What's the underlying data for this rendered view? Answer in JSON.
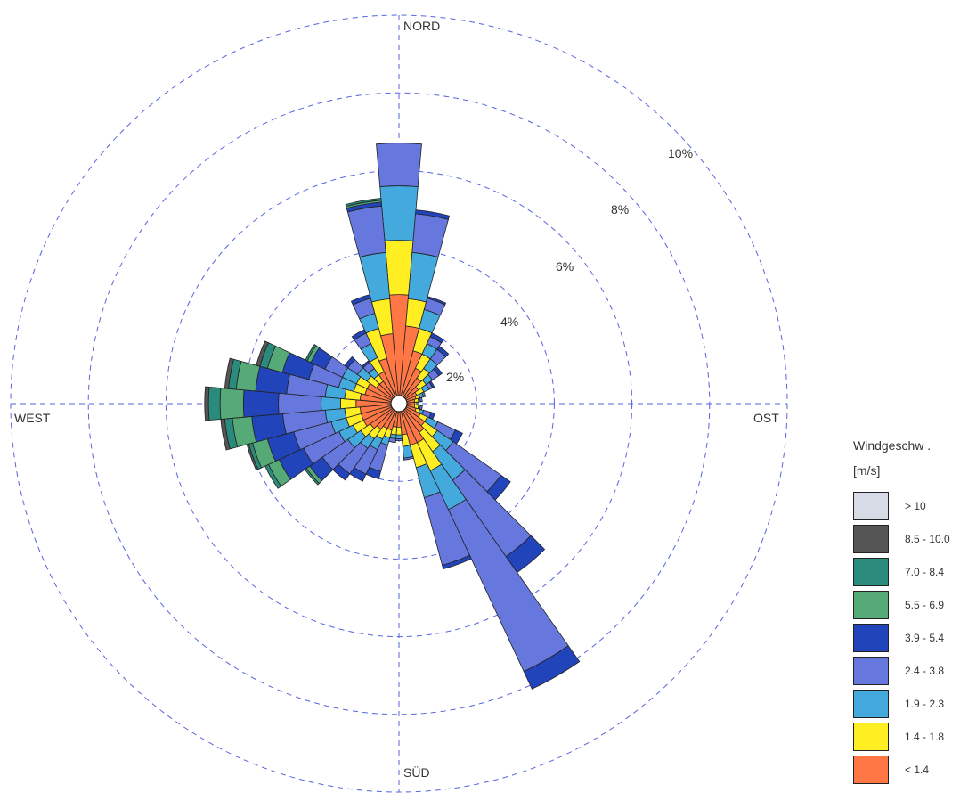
{
  "chart_data": {
    "type": "windrose",
    "cardinals": {
      "north": "NORD",
      "east": "OST",
      "south": "SÜD",
      "west": "WEST"
    },
    "ring_labels": [
      "2%",
      "4%",
      "6%",
      "8%",
      "10%"
    ],
    "ring_values": [
      2,
      4,
      6,
      8,
      10
    ],
    "radial_max": 10,
    "legend_title": "Windgeschw .",
    "legend_unit": "[m/s]",
    "speed_classes": [
      {
        "label": "> 10",
        "color": "#d7dbe6"
      },
      {
        "label": "8.5 - 10.0",
        "color": "#555555"
      },
      {
        "label": "7.0 - 8.4",
        "color": "#2a8a7c"
      },
      {
        "label": "5.5 - 6.9",
        "color": "#55aa77"
      },
      {
        "label": "3.9 - 5.4",
        "color": "#2244bb"
      },
      {
        "label": "2.4 - 3.8",
        "color": "#6677dd"
      },
      {
        "label": "1.9 - 2.3",
        "color": "#44aadd"
      },
      {
        "label": "1.4 - 1.8",
        "color": "#ffee22"
      },
      {
        "label": "< 1.4",
        "color": "#ff7744"
      }
    ],
    "sector_width_deg": 10,
    "stack_order_note": "segments listed inner to outer: <1.4, 1.4-1.8, 1.9-2.3, 2.4-3.8, 3.9-5.4, 5.5-6.9, 7.0-8.4, 8.5-10.0",
    "sectors": [
      {
        "dir": 0,
        "segments": [
          2.6,
          1.4,
          1.4,
          1.1,
          0,
          0,
          0,
          0
        ]
      },
      {
        "dir": 10,
        "segments": [
          1.8,
          0.7,
          1.2,
          1.0,
          0.1,
          0,
          0,
          0
        ]
      },
      {
        "dir": 20,
        "segments": [
          1.2,
          0.6,
          0.5,
          0.3,
          0.05,
          0,
          0,
          0
        ]
      },
      {
        "dir": 30,
        "segments": [
          0.8,
          0.4,
          0.3,
          0.2,
          0.1,
          0,
          0,
          0
        ]
      },
      {
        "dir": 40,
        "segments": [
          0.6,
          0.3,
          0.3,
          0.3,
          0.1,
          0,
          0,
          0
        ]
      },
      {
        "dir": 50,
        "segments": [
          0.4,
          0.25,
          0.2,
          0.2,
          0.1,
          0,
          0,
          0
        ]
      },
      {
        "dir": 60,
        "segments": [
          0.3,
          0.2,
          0.15,
          0.1,
          0.05,
          0,
          0,
          0
        ]
      },
      {
        "dir": 70,
        "segments": [
          0.25,
          0.1,
          0.1,
          0.05,
          0,
          0,
          0,
          0
        ]
      },
      {
        "dir": 80,
        "segments": [
          0.2,
          0.1,
          0.05,
          0.05,
          0,
          0,
          0,
          0
        ]
      },
      {
        "dir": 90,
        "segments": [
          0.2,
          0.05,
          0.05,
          0,
          0,
          0,
          0,
          0
        ]
      },
      {
        "dir": 100,
        "segments": [
          0.2,
          0.1,
          0.05,
          0.05,
          0,
          0,
          0,
          0
        ]
      },
      {
        "dir": 110,
        "segments": [
          0.25,
          0.1,
          0.1,
          0.2,
          0.1,
          0,
          0,
          0
        ]
      },
      {
        "dir": 120,
        "segments": [
          0.4,
          0.2,
          0.3,
          0.5,
          0.2,
          0,
          0,
          0
        ]
      },
      {
        "dir": 130,
        "segments": [
          0.6,
          0.4,
          0.5,
          1.5,
          0.3,
          0,
          0,
          0
        ]
      },
      {
        "dir": 140,
        "segments": [
          0.7,
          0.6,
          0.9,
          2.4,
          0.5,
          0,
          0,
          0
        ]
      },
      {
        "dir": 150,
        "segments": [
          0.9,
          0.8,
          1.1,
          4.6,
          0.5,
          0,
          0,
          0
        ]
      },
      {
        "dir": 160,
        "segments": [
          0.9,
          0.6,
          0.8,
          1.8,
          0.1,
          0,
          0,
          0
        ]
      },
      {
        "dir": 170,
        "segments": [
          0.6,
          0.3,
          0.3,
          0.05,
          0,
          0,
          0,
          0
        ]
      },
      {
        "dir": 180,
        "segments": [
          0.4,
          0.2,
          0.1,
          0.05,
          0,
          0,
          0,
          0
        ]
      },
      {
        "dir": 190,
        "segments": [
          0.4,
          0.2,
          0.1,
          0.1,
          0,
          0,
          0,
          0
        ]
      },
      {
        "dir": 200,
        "segments": [
          0.5,
          0.2,
          0.2,
          0.7,
          0.2,
          0,
          0,
          0
        ]
      },
      {
        "dir": 210,
        "segments": [
          0.5,
          0.3,
          0.3,
          0.7,
          0.2,
          0,
          0,
          0
        ]
      },
      {
        "dir": 220,
        "segments": [
          0.6,
          0.3,
          0.3,
          0.8,
          0.2,
          0,
          0,
          0
        ]
      },
      {
        "dir": 230,
        "segments": [
          0.7,
          0.3,
          0.4,
          0.8,
          0.4,
          0.1,
          0.05,
          0
        ]
      },
      {
        "dir": 240,
        "segments": [
          0.8,
          0.3,
          0.4,
          1.0,
          0.7,
          0.3,
          0.1,
          0
        ]
      },
      {
        "dir": 250,
        "segments": [
          0.8,
          0.4,
          0.4,
          1.0,
          0.7,
          0.4,
          0.1,
          0.05
        ]
      },
      {
        "dir": 260,
        "segments": [
          0.8,
          0.4,
          0.5,
          1.1,
          0.8,
          0.5,
          0.2,
          0.1
        ]
      },
      {
        "dir": 270,
        "segments": [
          0.9,
          0.4,
          0.5,
          1.1,
          0.9,
          0.6,
          0.3,
          0.1
        ]
      },
      {
        "dir": 280,
        "segments": [
          0.8,
          0.4,
          0.5,
          1.0,
          0.8,
          0.5,
          0.2,
          0.1
        ]
      },
      {
        "dir": 290,
        "segments": [
          0.7,
          0.3,
          0.4,
          0.8,
          0.7,
          0.4,
          0.2,
          0.1
        ]
      },
      {
        "dir": 300,
        "segments": [
          0.7,
          0.3,
          0.4,
          0.5,
          0.4,
          0.1,
          0.05,
          0
        ]
      },
      {
        "dir": 310,
        "segments": [
          0.5,
          0.3,
          0.3,
          0.3,
          0.1,
          0,
          0,
          0
        ]
      },
      {
        "dir": 320,
        "segments": [
          0.5,
          0.2,
          0.2,
          0.2,
          0.05,
          0,
          0,
          0
        ]
      },
      {
        "dir": 330,
        "segments": [
          0.7,
          0.4,
          0.4,
          0.3,
          0.1,
          0,
          0,
          0
        ]
      },
      {
        "dir": 340,
        "segments": [
          1.0,
          0.8,
          0.4,
          0.4,
          0.1,
          0,
          0,
          0
        ]
      },
      {
        "dir": 350,
        "segments": [
          1.6,
          0.9,
          1.2,
          1.2,
          0.1,
          0.05,
          0.05,
          0
        ]
      }
    ]
  }
}
